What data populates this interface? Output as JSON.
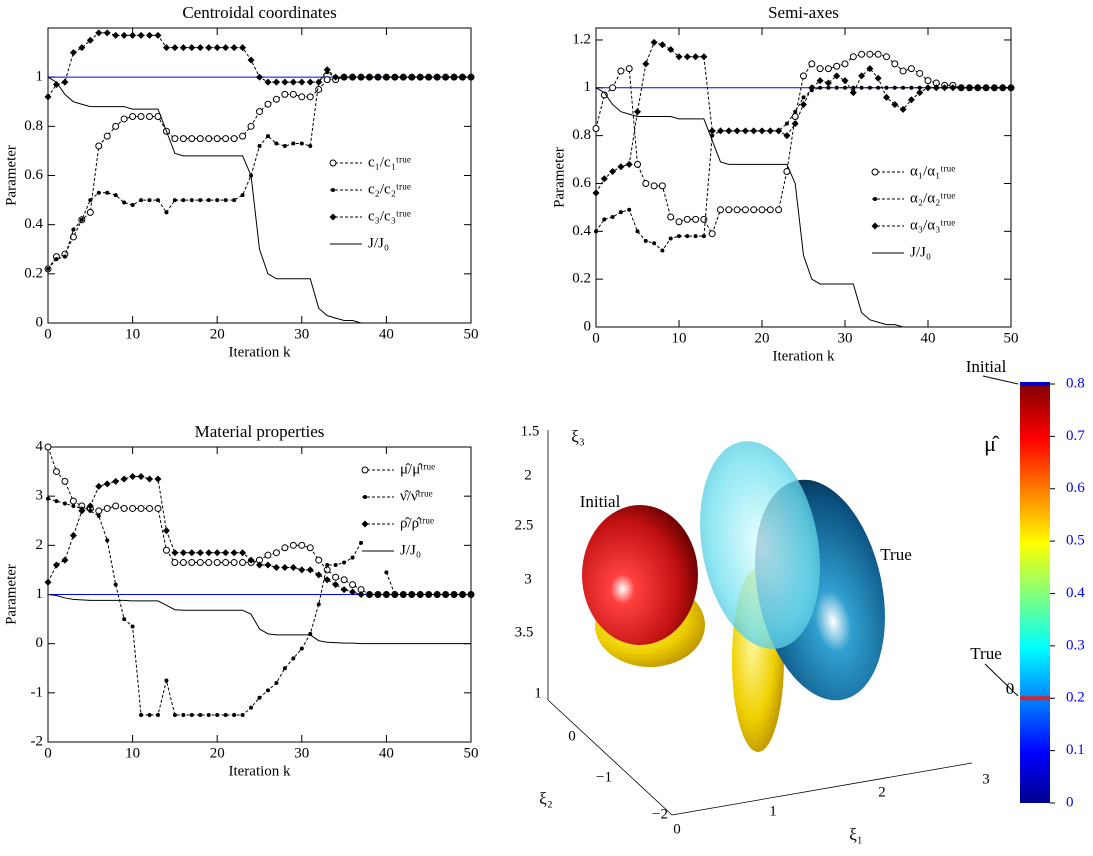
{
  "chart_data": [
    {
      "type": "line",
      "title": "Centroidal coordinates",
      "xlabel": "Iteration k",
      "ylabel": "Parameter",
      "x": [
        0,
        1,
        2,
        3,
        4,
        5,
        6,
        7,
        8,
        9,
        10,
        11,
        12,
        13,
        14,
        15,
        16,
        17,
        18,
        19,
        20,
        21,
        22,
        23,
        24,
        25,
        26,
        27,
        28,
        29,
        30,
        31,
        32,
        33,
        34,
        35,
        36,
        37,
        38,
        39,
        40,
        41,
        42,
        43,
        44,
        45,
        46,
        47,
        48,
        49,
        50
      ],
      "xlim": [
        0,
        50
      ],
      "xticks": [
        0,
        10,
        20,
        30,
        40,
        50
      ],
      "ylim": [
        0,
        1.2
      ],
      "yticks": [
        0,
        0.2,
        0.4,
        0.6,
        0.8,
        1
      ],
      "hline": 1,
      "hline_color": "#0000ff",
      "series": [
        {
          "name": "c₁/c₁ᵗʳᵘᵉ",
          "color": "#000000",
          "marker": "o",
          "dash": true,
          "values": [
            0.22,
            0.27,
            0.28,
            0.35,
            0.42,
            0.45,
            0.72,
            0.76,
            0.8,
            0.83,
            0.84,
            0.84,
            0.84,
            0.84,
            0.78,
            0.75,
            0.75,
            0.75,
            0.75,
            0.75,
            0.75,
            0.75,
            0.75,
            0.76,
            0.8,
            0.86,
            0.89,
            0.91,
            0.93,
            0.93,
            0.92,
            0.92,
            0.95,
            0.99,
            0.99,
            1,
            1,
            1,
            1,
            1,
            1,
            1,
            1,
            1,
            1,
            1,
            1,
            1,
            1,
            1,
            1
          ]
        },
        {
          "name": "c₂/c₂ᵗʳᵘᵉ",
          "color": "#000000",
          "marker": ".",
          "dash": true,
          "values": [
            0.22,
            0.26,
            0.27,
            0.38,
            0.42,
            0.5,
            0.53,
            0.53,
            0.52,
            0.49,
            0.48,
            0.5,
            0.5,
            0.5,
            0.45,
            0.5,
            0.5,
            0.5,
            0.5,
            0.5,
            0.5,
            0.5,
            0.5,
            0.52,
            0.6,
            0.72,
            0.76,
            0.73,
            0.72,
            0.73,
            0.73,
            0.72,
            0.98,
            1.02,
            1,
            1,
            1,
            1,
            1,
            1,
            1,
            1,
            1,
            1,
            1,
            1,
            1,
            1,
            1,
            1,
            1
          ]
        },
        {
          "name": "c₃/c₃ᵗʳᵘᵉ",
          "color": "#000000",
          "marker": "d",
          "dash": true,
          "values": [
            0.92,
            0.97,
            0.98,
            1.1,
            1.12,
            1.15,
            1.18,
            1.18,
            1.17,
            1.17,
            1.17,
            1.17,
            1.17,
            1.17,
            1.12,
            1.12,
            1.12,
            1.12,
            1.12,
            1.12,
            1.12,
            1.12,
            1.12,
            1.12,
            1.07,
            1,
            0.98,
            0.98,
            0.98,
            0.98,
            0.98,
            0.98,
            0.98,
            1.03,
            1,
            1,
            1,
            1,
            1,
            1,
            1,
            1,
            1,
            1,
            1,
            1,
            1,
            1,
            1,
            1,
            1
          ]
        },
        {
          "name": "J/J₀",
          "color": "#000000",
          "marker": "none",
          "dash": false,
          "values": [
            1,
            0.98,
            0.93,
            0.9,
            0.89,
            0.88,
            0.88,
            0.88,
            0.88,
            0.88,
            0.87,
            0.87,
            0.87,
            0.87,
            0.78,
            0.69,
            0.68,
            0.68,
            0.68,
            0.68,
            0.68,
            0.68,
            0.68,
            0.68,
            0.6,
            0.3,
            0.2,
            0.18,
            0.18,
            0.18,
            0.18,
            0.18,
            0.06,
            0.03,
            0.02,
            0.01,
            0.01,
            0,
            0,
            0,
            0,
            0,
            0,
            0,
            0,
            0,
            0,
            0,
            0,
            0,
            0
          ]
        }
      ]
    },
    {
      "type": "line",
      "title": "Semi-axes",
      "xlabel": "Iteration k",
      "ylabel": "Parameter",
      "x": [
        0,
        1,
        2,
        3,
        4,
        5,
        6,
        7,
        8,
        9,
        10,
        11,
        12,
        13,
        14,
        15,
        16,
        17,
        18,
        19,
        20,
        21,
        22,
        23,
        24,
        25,
        26,
        27,
        28,
        29,
        30,
        31,
        32,
        33,
        34,
        35,
        36,
        37,
        38,
        39,
        40,
        41,
        42,
        43,
        44,
        45,
        46,
        47,
        48,
        49,
        50
      ],
      "xlim": [
        0,
        50
      ],
      "xticks": [
        0,
        10,
        20,
        30,
        40,
        50
      ],
      "ylim": [
        0,
        1.25
      ],
      "yticks": [
        0,
        0.2,
        0.4,
        0.6,
        0.8,
        1,
        1.2
      ],
      "hline": 1,
      "hline_color": "#0000ff",
      "series": [
        {
          "name": "α₁/α₁ᵗʳᵘᵉ",
          "color": "#000000",
          "marker": "o",
          "dash": true,
          "values": [
            0.83,
            0.97,
            1,
            1.07,
            1.08,
            0.68,
            0.6,
            0.59,
            0.59,
            0.46,
            0.44,
            0.45,
            0.45,
            0.45,
            0.39,
            0.49,
            0.49,
            0.49,
            0.49,
            0.49,
            0.49,
            0.49,
            0.49,
            0.65,
            0.88,
            1.05,
            1.1,
            1.08,
            1.08,
            1.09,
            1.1,
            1.13,
            1.14,
            1.14,
            1.14,
            1.13,
            1.1,
            1.07,
            1.08,
            1.06,
            1.03,
            1.02,
            1.01,
            1.01,
            1,
            1,
            1,
            1,
            1,
            1,
            1
          ]
        },
        {
          "name": "α₂/α₂ᵗʳᵘᵉ",
          "color": "#000000",
          "marker": ".",
          "dash": true,
          "values": [
            0.4,
            0.45,
            0.46,
            0.48,
            0.49,
            0.4,
            0.36,
            0.35,
            0.32,
            0.37,
            0.38,
            0.38,
            0.38,
            0.38,
            0.8,
            0.82,
            0.82,
            0.82,
            0.82,
            0.82,
            0.82,
            0.82,
            0.82,
            0.85,
            0.9,
            0.96,
            0.99,
            1,
            1,
            1,
            1,
            1,
            1,
            1,
            1,
            1,
            1,
            1,
            1,
            1,
            1,
            1,
            1,
            1,
            1,
            1,
            1,
            1,
            1,
            1,
            1
          ]
        },
        {
          "name": "α₃/α₃ᵗʳᵘᵉ",
          "color": "#000000",
          "marker": "d",
          "dash": true,
          "values": [
            0.56,
            0.62,
            0.65,
            0.67,
            0.68,
            0.9,
            1.1,
            1.19,
            1.18,
            1.16,
            1.13,
            1.13,
            1.13,
            1.13,
            0.82,
            0.82,
            0.82,
            0.82,
            0.82,
            0.82,
            0.82,
            0.82,
            0.82,
            0.8,
            0.85,
            0.93,
            1,
            1.03,
            1.02,
            1.05,
            1.03,
            0.98,
            1.05,
            1.08,
            1.04,
            0.96,
            0.93,
            0.91,
            0.95,
            0.98,
            1,
            1,
            1,
            1,
            1,
            1,
            1,
            1,
            1,
            1,
            1
          ]
        },
        {
          "name": "J/J₀",
          "color": "#000000",
          "marker": "none",
          "dash": false,
          "values": [
            1,
            0.98,
            0.93,
            0.9,
            0.89,
            0.88,
            0.88,
            0.88,
            0.88,
            0.88,
            0.87,
            0.87,
            0.87,
            0.87,
            0.78,
            0.69,
            0.68,
            0.68,
            0.68,
            0.68,
            0.68,
            0.68,
            0.68,
            0.68,
            0.6,
            0.3,
            0.2,
            0.18,
            0.18,
            0.18,
            0.18,
            0.18,
            0.06,
            0.03,
            0.02,
            0.01,
            0.01,
            0,
            0,
            0,
            0,
            0,
            0,
            0,
            0,
            0,
            0,
            0,
            0,
            0,
            0
          ]
        }
      ]
    },
    {
      "type": "line",
      "title": "Material properties",
      "xlabel": "Iteration k",
      "ylabel": "Parameter",
      "x": [
        0,
        1,
        2,
        3,
        4,
        5,
        6,
        7,
        8,
        9,
        10,
        11,
        12,
        13,
        14,
        15,
        16,
        17,
        18,
        19,
        20,
        21,
        22,
        23,
        24,
        25,
        26,
        27,
        28,
        29,
        30,
        31,
        32,
        33,
        34,
        35,
        36,
        37,
        38,
        39,
        40,
        41,
        42,
        43,
        44,
        45,
        46,
        47,
        48,
        49,
        50
      ],
      "xlim": [
        0,
        50
      ],
      "xticks": [
        0,
        10,
        20,
        30,
        40,
        50
      ],
      "ylim": [
        -2,
        4
      ],
      "yticks": [
        -2,
        -1,
        0,
        1,
        2,
        3,
        4
      ],
      "hline": 1,
      "hline_color": "#0000ff",
      "series": [
        {
          "name": "μ̂/μ̂ᵗʳᵘᵉ",
          "color": "#000000",
          "marker": "o",
          "dash": true,
          "values": [
            4,
            3.5,
            3.3,
            2.9,
            2.8,
            2.75,
            2.7,
            2.75,
            2.8,
            2.75,
            2.75,
            2.75,
            2.75,
            2.75,
            1.9,
            1.65,
            1.65,
            1.65,
            1.65,
            1.65,
            1.65,
            1.65,
            1.65,
            1.65,
            1.65,
            1.7,
            1.8,
            1.85,
            1.95,
            2,
            2,
            1.95,
            1.7,
            1.5,
            1.35,
            1.3,
            1.2,
            1.1,
            1,
            1,
            1,
            1,
            1,
            1,
            1,
            1,
            1,
            1,
            1,
            1,
            1
          ]
        },
        {
          "name": "ν̂/ν̂ᵗʳᵘᵉ",
          "color": "#000000",
          "marker": ".",
          "dash": true,
          "values": [
            2.95,
            2.9,
            2.85,
            2.8,
            2.75,
            2.7,
            2.6,
            2.1,
            1.2,
            0.5,
            0.35,
            -1.45,
            -1.45,
            -1.45,
            -0.75,
            -1.45,
            -1.45,
            -1.45,
            -1.45,
            -1.45,
            -1.45,
            -1.45,
            -1.45,
            -1.45,
            -1.3,
            -1.1,
            -0.95,
            -0.8,
            -0.5,
            -0.3,
            -0.1,
            0.2,
            0.8,
            1.6,
            1.6,
            1.65,
            1.75,
            2.05,
            null,
            null,
            1.45,
            1,
            1,
            1,
            1,
            1,
            1,
            1,
            1,
            1,
            1
          ]
        },
        {
          "name": "ρ̂/ρ̂ᵗʳᵘᵉ",
          "color": "#000000",
          "marker": "d",
          "dash": true,
          "values": [
            1.25,
            1.6,
            1.7,
            2.2,
            2.7,
            2.8,
            3.2,
            3.25,
            3.3,
            3.35,
            3.4,
            3.4,
            3.35,
            3.35,
            2.3,
            1.85,
            1.85,
            1.85,
            1.85,
            1.85,
            1.85,
            1.85,
            1.85,
            1.85,
            1.7,
            1.6,
            1.6,
            1.55,
            1.55,
            1.55,
            1.5,
            1.5,
            1.4,
            1.3,
            1.2,
            1.1,
            1.05,
            1,
            1,
            1,
            1,
            1,
            1,
            1,
            1,
            1,
            1,
            1,
            1,
            1,
            1
          ]
        },
        {
          "name": "J/J₀",
          "color": "#000000",
          "marker": "none",
          "dash": false,
          "values": [
            1,
            0.98,
            0.93,
            0.9,
            0.89,
            0.88,
            0.88,
            0.88,
            0.88,
            0.88,
            0.87,
            0.87,
            0.87,
            0.87,
            0.78,
            0.69,
            0.68,
            0.68,
            0.68,
            0.68,
            0.68,
            0.68,
            0.68,
            0.68,
            0.6,
            0.3,
            0.2,
            0.18,
            0.18,
            0.18,
            0.18,
            0.18,
            0.06,
            0.03,
            0.02,
            0.01,
            0.01,
            0,
            0,
            0,
            0,
            0,
            0,
            0,
            0,
            0,
            0,
            0,
            0,
            0,
            0
          ]
        }
      ]
    },
    {
      "type": "surface3d",
      "xlabel": "ξ₁",
      "ylabel": "ξ₂",
      "zlabel": "ξ₃",
      "xticks": [
        0,
        1,
        2,
        3
      ],
      "yticks": [
        1,
        0,
        {
          "value": -1,
          "label": "−1"
        },
        {
          "value": -2,
          "label": "−2"
        }
      ],
      "zticks": [
        1.5,
        2,
        2.5,
        3,
        3.5
      ],
      "annotations": [
        "Initial",
        "True",
        "0"
      ],
      "colorbar": {
        "label": "μ̂",
        "range": [
          0,
          0.8
        ],
        "ticks": [
          0,
          0.1,
          0.2,
          0.3,
          0.4,
          0.5,
          0.6,
          0.7,
          0.8
        ],
        "tick_color": "#0000ff",
        "initial": 0.8,
        "initial_label": "Initial",
        "true": 0.2,
        "true_label": "True",
        "marker_colors": [
          "#0000cc",
          "#dd2222"
        ]
      }
    }
  ]
}
